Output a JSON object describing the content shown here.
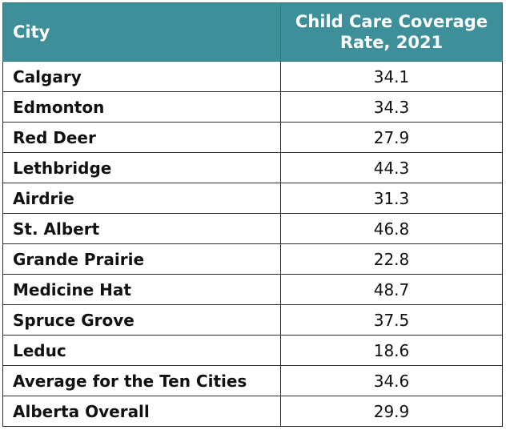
{
  "table": {
    "headers": {
      "city": "City",
      "rate_line1": "Child Care Coverage",
      "rate_line2": "Rate, 2021"
    },
    "rows": [
      {
        "city": "Calgary",
        "rate": "34.1"
      },
      {
        "city": "Edmonton",
        "rate": "34.3"
      },
      {
        "city": "Red Deer",
        "rate": "27.9"
      },
      {
        "city": "Lethbridge",
        "rate": "44.3"
      },
      {
        "city": "Airdrie",
        "rate": "31.3"
      },
      {
        "city": "St. Albert",
        "rate": "46.8"
      },
      {
        "city": "Grande Prairie",
        "rate": "22.8"
      },
      {
        "city": "Medicine Hat",
        "rate": "48.7"
      },
      {
        "city": "Spruce Grove",
        "rate": "37.5"
      },
      {
        "city": "Leduc",
        "rate": "18.6"
      },
      {
        "city": "Average for the Ten Cities",
        "rate": "34.6"
      },
      {
        "city": "Alberta Overall",
        "rate": "29.9"
      }
    ]
  },
  "colors": {
    "header_bg": "#3d8f9a",
    "header_text": "#ffffff",
    "border": "#2b2b2b"
  }
}
